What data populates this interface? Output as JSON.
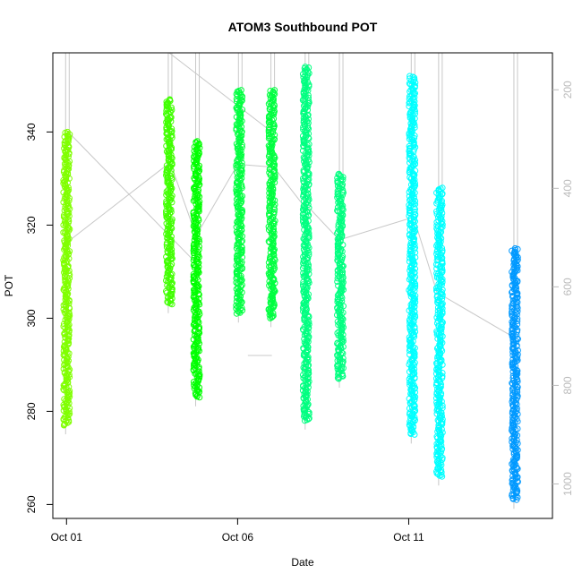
{
  "chart_data": {
    "type": "scatter",
    "title": "ATOM3 Southbound POT",
    "xlabel": "Date",
    "ylabel": "POT",
    "x_ticks": [
      "Oct 01",
      "Oct 06",
      "Oct 11"
    ],
    "x_tick_values": [
      1,
      6,
      11
    ],
    "xlim": [
      0.6,
      15.2
    ],
    "ylim": [
      257,
      357
    ],
    "y_ticks": [
      260,
      280,
      300,
      320,
      340
    ],
    "y2_ticks": [
      200,
      400,
      600,
      800,
      1000
    ],
    "y2_range_at_ylim": [
      125,
      1070
    ],
    "y2_reversed": true,
    "y2_color": "#bbbbbb",
    "grid": false,
    "legend": "none",
    "trace_color": "#c8c8c8",
    "casts": [
      {
        "date": 1.0,
        "pot_min": 277,
        "pot_max": 340,
        "color": "#80ff00"
      },
      {
        "date": 4.0,
        "pot_min": 303,
        "pot_max": 347,
        "color": "#40ff00"
      },
      {
        "date": 4.8,
        "pot_min": 283,
        "pot_max": 338,
        "color": "#00ff00"
      },
      {
        "date": 6.05,
        "pot_min": 301,
        "pot_max": 349,
        "color": "#00ff40"
      },
      {
        "date": 7.0,
        "pot_min": 300,
        "pot_max": 349,
        "color": "#00ff40"
      },
      {
        "date": 8.0,
        "pot_min": 278,
        "pot_max": 354,
        "color": "#00ff80"
      },
      {
        "date": 9.0,
        "pot_min": 287,
        "pot_max": 331,
        "color": "#00ff80"
      },
      {
        "date": 11.1,
        "pot_min": 275,
        "pot_max": 352,
        "color": "#00ffff"
      },
      {
        "date": 11.9,
        "pot_min": 266,
        "pot_max": 328,
        "color": "#00ffff"
      },
      {
        "date": 14.1,
        "pot_min": 261,
        "pot_max": 315,
        "color": "#0099ff"
      }
    ]
  }
}
